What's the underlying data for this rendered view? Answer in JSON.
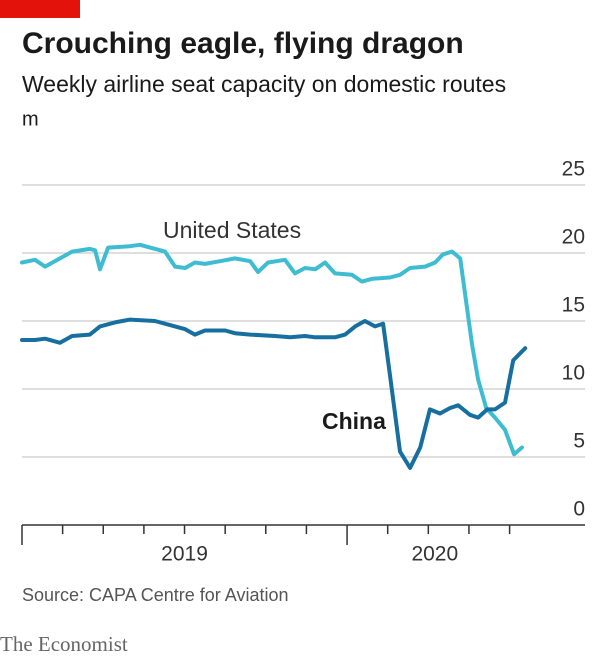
{
  "chart_data": {
    "type": "line",
    "title": "Crouching eagle, flying dragon",
    "subtitle": "Weekly airline seat capacity on domestic routes",
    "unit": "m",
    "source": "Source: CAPA Centre for Aviation",
    "publisher": "The Economist",
    "xlim": [
      2019,
      2020.732
    ],
    "ylim": [
      0,
      25
    ],
    "yticks": [
      0,
      5,
      10,
      15,
      20,
      25
    ],
    "xticks": [
      2019,
      2020
    ],
    "x_minor_ticks": [
      2019.125,
      2019.25,
      2019.375,
      2019.5,
      2019.625,
      2019.75,
      2019.875,
      2020.125,
      2020.25,
      2020.375,
      2020.5
    ],
    "x_labels": [
      {
        "value": 2019.5,
        "label": "2019"
      },
      {
        "value": 2020.27,
        "label": "2020"
      }
    ],
    "grid": true,
    "series": [
      {
        "name": "United States",
        "color": "#3ebcd2",
        "x": [
          2019.0,
          2019.04,
          2019.071,
          2019.117,
          2019.154,
          2019.209,
          2019.225,
          2019.24,
          2019.265,
          2019.332,
          2019.363,
          2019.44,
          2019.471,
          2019.502,
          2019.532,
          2019.563,
          2019.609,
          2019.655,
          2019.702,
          2019.726,
          2019.757,
          2019.809,
          2019.84,
          2019.871,
          2019.902,
          2019.932,
          2019.963,
          2020.015,
          2020.046,
          2020.077,
          2020.132,
          2020.163,
          2020.194,
          2020.24,
          2020.271,
          2020.295,
          2020.323,
          2020.348,
          2020.366,
          2020.385,
          2020.403,
          2020.428,
          2020.455,
          2020.486,
          2020.514,
          2020.538
        ],
        "values": [
          19.3,
          19.5,
          19.0,
          19.6,
          20.1,
          20.3,
          20.2,
          18.8,
          20.4,
          20.5,
          20.6,
          20.1,
          19.0,
          18.9,
          19.3,
          19.2,
          19.4,
          19.6,
          19.4,
          18.6,
          19.3,
          19.5,
          18.5,
          18.9,
          18.8,
          19.3,
          18.5,
          18.4,
          17.9,
          18.1,
          18.2,
          18.4,
          18.9,
          19.0,
          19.3,
          19.9,
          20.1,
          19.6,
          16.5,
          13.2,
          10.7,
          8.6,
          7.9,
          7.0,
          5.2,
          5.7
        ]
      },
      {
        "name": "China",
        "color": "#176fa0",
        "x": [
          2019.0,
          2019.04,
          2019.071,
          2019.117,
          2019.154,
          2019.209,
          2019.24,
          2019.286,
          2019.332,
          2019.409,
          2019.471,
          2019.502,
          2019.532,
          2019.563,
          2019.625,
          2019.655,
          2019.702,
          2019.778,
          2019.825,
          2019.871,
          2019.902,
          2019.963,
          2019.994,
          2020.025,
          2020.055,
          2020.086,
          2020.111,
          2020.132,
          2020.163,
          2020.194,
          2020.225,
          2020.255,
          2020.286,
          2020.317,
          2020.342,
          2020.378,
          2020.403,
          2020.431,
          2020.455,
          2020.486,
          2020.511,
          2020.548
        ],
        "values": [
          13.6,
          13.6,
          13.7,
          13.4,
          13.9,
          14.0,
          14.6,
          14.9,
          15.1,
          15.0,
          14.6,
          14.4,
          14.0,
          14.3,
          14.3,
          14.1,
          14.0,
          13.9,
          13.8,
          13.9,
          13.8,
          13.8,
          14.0,
          14.6,
          15.0,
          14.6,
          14.8,
          11.0,
          5.4,
          4.2,
          5.7,
          8.5,
          8.2,
          8.6,
          8.8,
          8.1,
          7.9,
          8.5,
          8.5,
          9.0,
          12.1,
          13.0
        ]
      }
    ]
  }
}
